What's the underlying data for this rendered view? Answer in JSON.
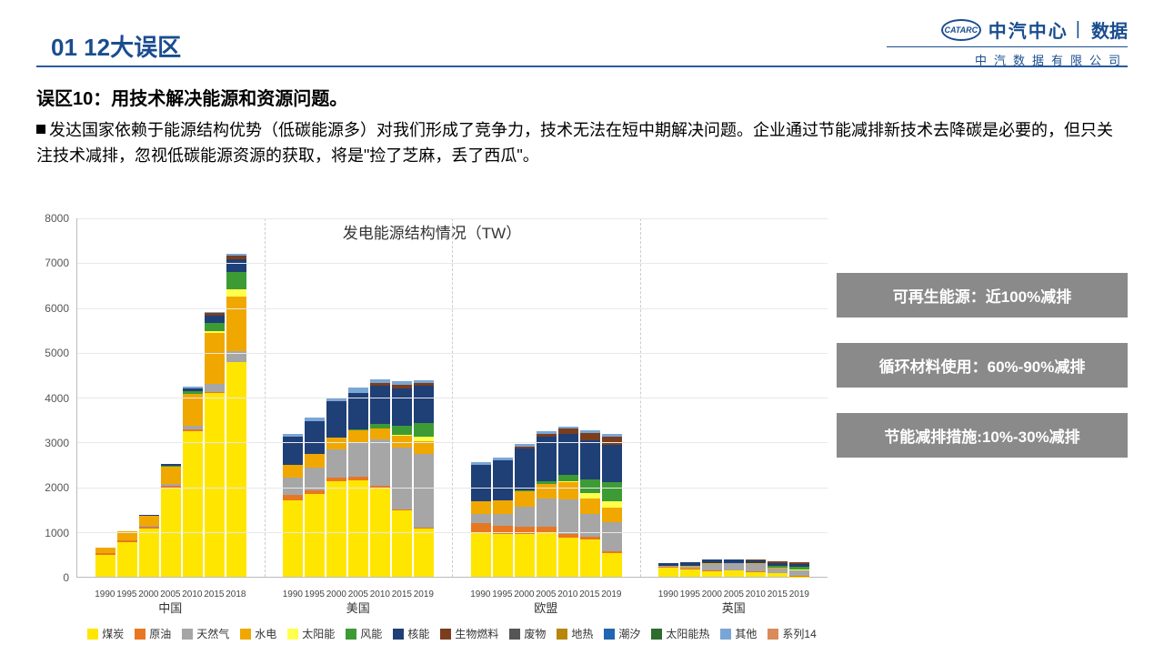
{
  "logo": {
    "oval_text": "CATARC",
    "main1": "中汽中心",
    "main2": "数据",
    "sub": "中汽数据有限公司"
  },
  "section_title": "01 12大误区",
  "subtitle": "误区10：用技术解决能源和资源问题。",
  "body": "发达国家依赖于能源结构优势（低碳能源多）对我们形成了竞争力，技术无法在短中期解决问题。企业通过节能减排新技术去降碳是必要的，但只关注技术减排，忽视低碳能源资源的获取，将是\"捡了芝麻，丢了西瓜\"。",
  "callouts": [
    "可再生能源：近100%减排",
    "循环材料使用：60%-90%减排",
    "节能减排措施:10%-30%减排"
  ],
  "chart": {
    "title": "发电能源结构情况（TW）",
    "ylim": [
      0,
      8000
    ],
    "ytick_step": 1000,
    "groups": [
      "中国",
      "美国",
      "欧盟",
      "英国"
    ],
    "years_cn": [
      "1990",
      "1995",
      "2000",
      "2005",
      "2010",
      "2015",
      "2018"
    ],
    "years_other": [
      "1990",
      "1995",
      "2000",
      "2005",
      "2010",
      "2015",
      "2019"
    ],
    "series": [
      {
        "name": "煤炭",
        "color": "#ffe600"
      },
      {
        "name": "原油",
        "color": "#e87722"
      },
      {
        "name": "天然气",
        "color": "#a6a6a6"
      },
      {
        "name": "水电",
        "color": "#f0a800"
      },
      {
        "name": "太阳能",
        "color": "#ffff4d"
      },
      {
        "name": "风能",
        "color": "#3d9b35"
      },
      {
        "name": "核能",
        "color": "#1f3f77"
      },
      {
        "name": "生物燃料",
        "color": "#7a3e1f"
      },
      {
        "name": "废物",
        "color": "#555555"
      },
      {
        "name": "地热",
        "color": "#b8860b"
      },
      {
        "name": "潮汐",
        "color": "#2066b0"
      },
      {
        "name": "太阳能热",
        "color": "#2e6b2e"
      },
      {
        "name": "其他",
        "color": "#7aa6d6"
      },
      {
        "name": "系列14",
        "color": "#d98c5a"
      }
    ],
    "data": {
      "中国": [
        {
          "煤炭": 480,
          "原油": 40,
          "水电": 130
        },
        {
          "煤炭": 780,
          "原油": 40,
          "水电": 190
        },
        {
          "煤炭": 1080,
          "原油": 40,
          "天然气": 20,
          "水电": 220,
          "核能": 20
        },
        {
          "煤炭": 1980,
          "原油": 50,
          "天然气": 30,
          "水电": 400,
          "核能": 50,
          "风能": 10
        },
        {
          "煤炭": 3250,
          "原油": 30,
          "天然气": 80,
          "水电": 720,
          "核能": 70,
          "风能": 50,
          "其他": 30
        },
        {
          "煤炭": 4100,
          "原油": 20,
          "天然气": 170,
          "水电": 1130,
          "核能": 170,
          "风能": 190,
          "太阳能": 40,
          "生物燃料": 50,
          "其他": 30
        },
        {
          "煤炭": 4770,
          "原油": 20,
          "天然气": 240,
          "水电": 1200,
          "核能": 290,
          "风能": 370,
          "太阳能": 180,
          "生物燃料": 90,
          "其他": 40
        }
      ],
      "美国": [
        {
          "煤炭": 1700,
          "原油": 130,
          "天然气": 380,
          "水电": 290,
          "核能": 610,
          "其他": 80
        },
        {
          "煤炭": 1850,
          "原油": 80,
          "天然气": 500,
          "水电": 310,
          "核能": 720,
          "其他": 90
        },
        {
          "煤炭": 2130,
          "原油": 70,
          "天然气": 630,
          "水电": 270,
          "核能": 800,
          "其他": 100
        },
        {
          "煤炭": 2150,
          "原油": 70,
          "天然气": 780,
          "水电": 270,
          "核能": 810,
          "风能": 20,
          "其他": 120
        },
        {
          "煤炭": 1990,
          "原油": 40,
          "天然气": 1020,
          "水电": 260,
          "核能": 840,
          "风能": 100,
          "生物燃料": 60,
          "其他": 90
        },
        {
          "煤炭": 1470,
          "原油": 30,
          "天然气": 1380,
          "水电": 250,
          "核能": 830,
          "风能": 200,
          "太阳能": 40,
          "生物燃料": 70,
          "其他": 90
        },
        {
          "煤炭": 1070,
          "原油": 20,
          "天然气": 1640,
          "水电": 290,
          "核能": 840,
          "风能": 300,
          "太阳能": 100,
          "生物燃料": 60,
          "其他": 60
        }
      ],
      "欧盟": [
        {
          "煤炭": 1000,
          "原油": 200,
          "天然气": 190,
          "水电": 290,
          "核能": 820,
          "其他": 60
        },
        {
          "煤炭": 950,
          "原油": 180,
          "天然气": 260,
          "水电": 320,
          "核能": 880,
          "其他": 60
        },
        {
          "煤炭": 960,
          "原油": 150,
          "天然气": 440,
          "水电": 360,
          "核能": 930,
          "风能": 20,
          "生物燃料": 30,
          "其他": 60
        },
        {
          "煤炭": 990,
          "原油": 130,
          "天然气": 630,
          "水电": 310,
          "核能": 990,
          "风能": 70,
          "生物燃料": 70,
          "其他": 60
        },
        {
          "煤炭": 870,
          "原油": 80,
          "天然气": 770,
          "水电": 380,
          "核能": 920,
          "风能": 150,
          "太阳能": 20,
          "生物燃料": 120,
          "其他": 40
        },
        {
          "煤炭": 840,
          "原油": 60,
          "天然气": 500,
          "水电": 350,
          "核能": 860,
          "风能": 310,
          "太阳能": 110,
          "生物燃料": 180,
          "其他": 60
        },
        {
          "煤炭": 530,
          "原油": 40,
          "天然气": 640,
          "水电": 340,
          "核能": 820,
          "风能": 430,
          "太阳能": 130,
          "生物燃料": 190,
          "其他": 60
        }
      ],
      "英国": [
        {
          "煤炭": 210,
          "原油": 20,
          "天然气": 5,
          "核能": 65,
          "水电": 10
        },
        {
          "煤炭": 160,
          "原油": 15,
          "天然气": 55,
          "核能": 90,
          "水电": 10
        },
        {
          "煤炭": 130,
          "原油": 10,
          "天然气": 145,
          "核能": 85,
          "水电": 10
        },
        {
          "煤炭": 140,
          "原油": 5,
          "天然气": 155,
          "核能": 80,
          "风能": 5,
          "水电": 10
        },
        {
          "煤炭": 110,
          "原油": 5,
          "天然气": 175,
          "核能": 65,
          "风能": 10,
          "生物燃料": 15,
          "水电": 10
        },
        {
          "煤炭": 80,
          "原油": 5,
          "天然气": 100,
          "核能": 70,
          "风能": 40,
          "太阳能": 10,
          "生物燃料": 30,
          "水电": 10
        },
        {
          "煤炭": 10,
          "原油": 2,
          "天然气": 130,
          "核能": 55,
          "风能": 65,
          "太阳能": 15,
          "生物燃料": 40,
          "水电": 10
        }
      ]
    }
  }
}
